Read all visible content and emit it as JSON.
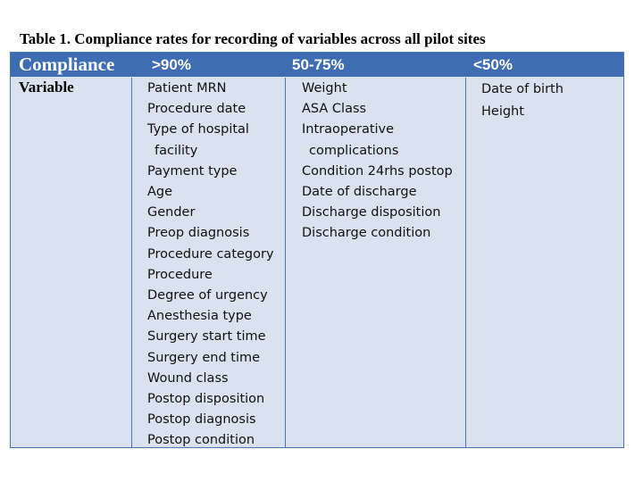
{
  "caption": "Table 1. Compliance rates for recording of variables across all pilot sites",
  "table": {
    "header": {
      "label": "Compliance",
      "col1": ">90%",
      "col2": "50-75%",
      "col3": "<50%"
    },
    "row_label": "Variable",
    "col1_items": [
      {
        "label": "Patient MRN"
      },
      {
        "label": "Procedure date"
      },
      {
        "label": "Type of hospital",
        "cont": "facility"
      },
      {
        "label": "Payment type"
      },
      {
        "label": "Age"
      },
      {
        "label": "Gender"
      },
      {
        "label": "Preop diagnosis"
      },
      {
        "label": "Procedure category"
      },
      {
        "label": "Procedure"
      },
      {
        "label": "Degree of urgency"
      },
      {
        "label": "Anesthesia type"
      },
      {
        "label": "Surgery start time"
      },
      {
        "label": "Surgery end time"
      },
      {
        "label": "Wound class"
      },
      {
        "label": "Postop disposition"
      },
      {
        "label": "Postop diagnosis"
      },
      {
        "label": "Postop condition"
      }
    ],
    "col2_items": [
      {
        "label": "Weight"
      },
      {
        "label": "ASA Class"
      },
      {
        "label": "Intraoperative",
        "cont": "complications"
      },
      {
        "label": "Condition 24rhs postop"
      },
      {
        "label": "Date of discharge"
      },
      {
        "label": "Discharge disposition"
      },
      {
        "label": "Discharge condition"
      }
    ],
    "col3_items": [
      {
        "label": "Date of birth"
      },
      {
        "label": "Height"
      }
    ]
  }
}
